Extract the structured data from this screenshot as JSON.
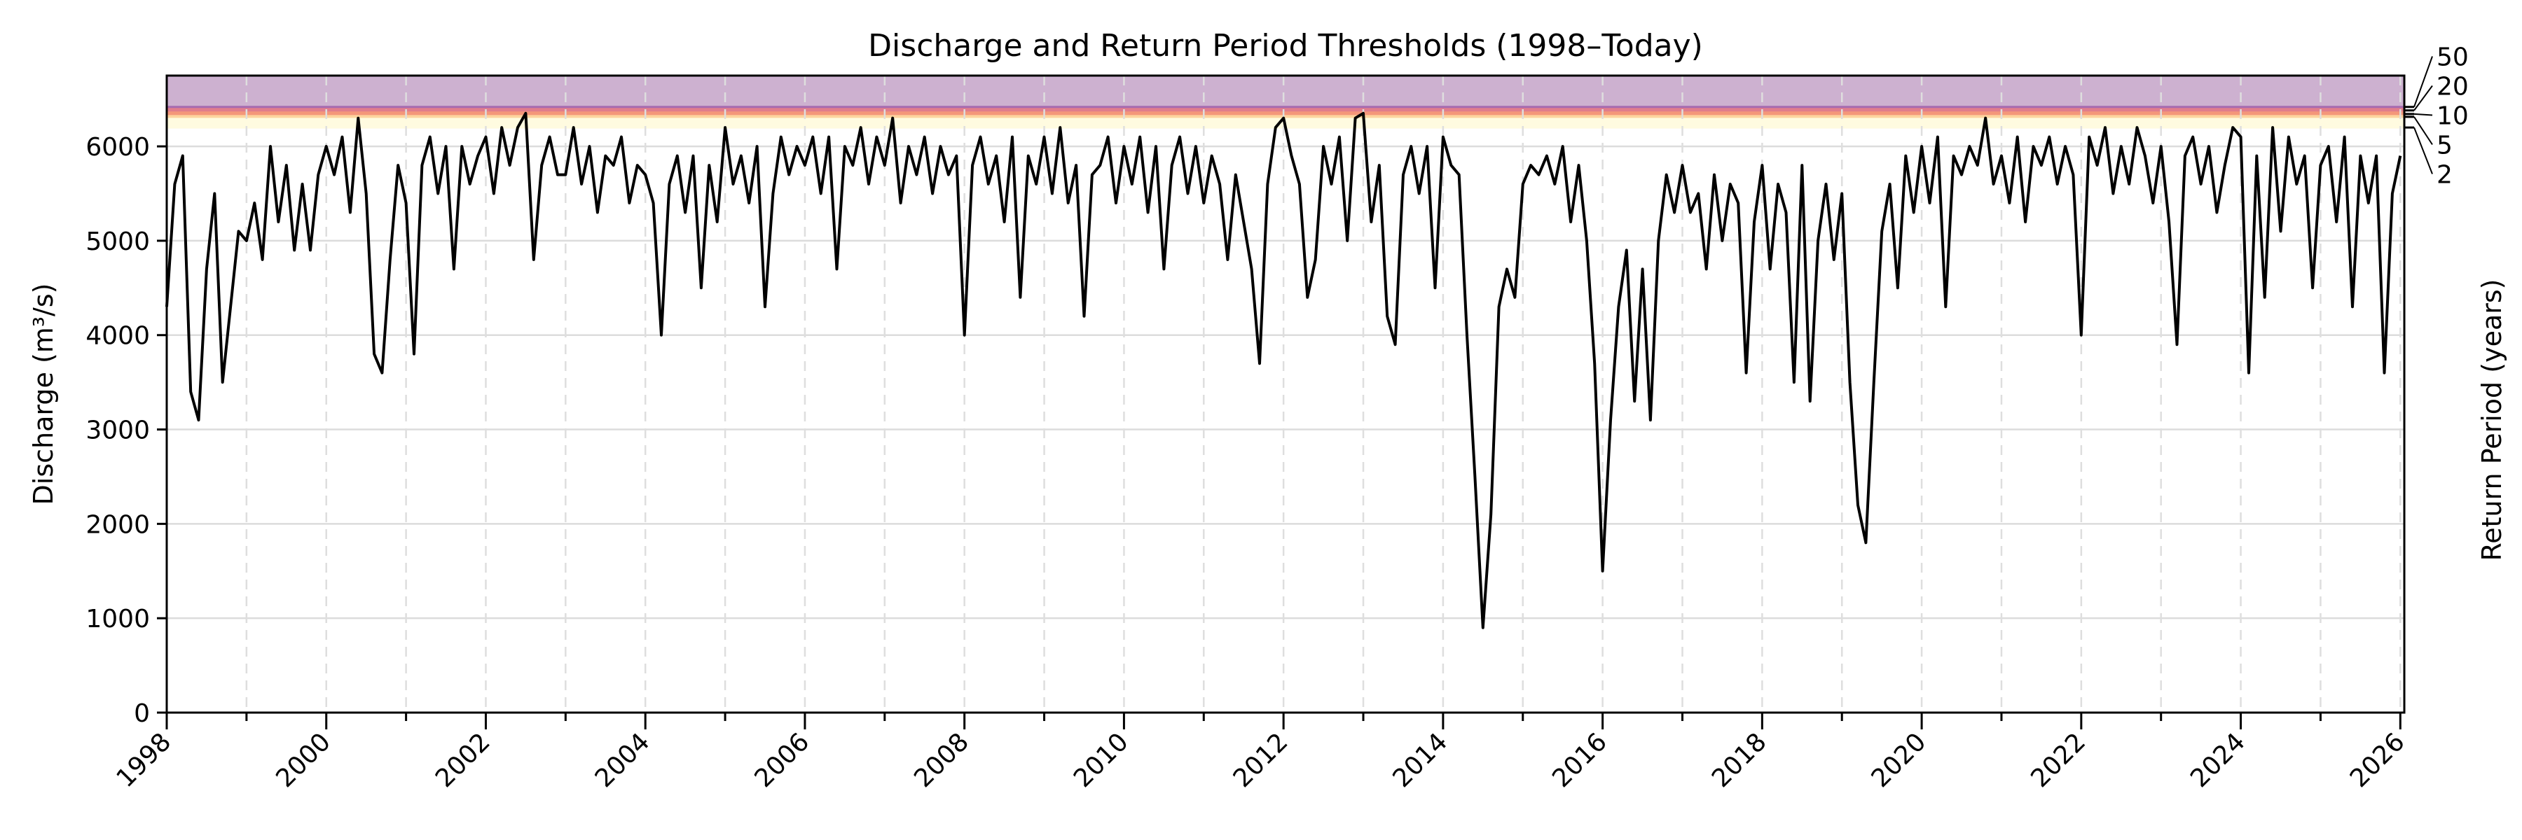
{
  "chart_data": {
    "type": "line",
    "title": "Discharge and Return Period Thresholds (1998–Today)",
    "xlabel": "",
    "ylabel": "Discharge (m³/s)",
    "y2label": "Return Period (years)",
    "xlim": [
      1998,
      2026.05
    ],
    "ylim": [
      0,
      6750
    ],
    "xticks": [
      "1998",
      "2000",
      "2002",
      "2004",
      "2006",
      "2008",
      "2010",
      "2012",
      "2014",
      "2016",
      "2018",
      "2020",
      "2022",
      "2024",
      "2026"
    ],
    "yticks": [
      "0",
      "1000",
      "2000",
      "3000",
      "4000",
      "5000",
      "6000"
    ],
    "grid": true,
    "line_color": "#000000",
    "return_periods": [
      {
        "label": "2",
        "value": 6200,
        "color": "#fffbe0"
      },
      {
        "label": "5",
        "value": 6313,
        "color": "#fdd49e"
      },
      {
        "label": "10",
        "value": 6343,
        "color": "#f4977a"
      },
      {
        "label": "20",
        "value": 6381,
        "color": "#e07d8c"
      },
      {
        "label": "50",
        "value": 6418,
        "color": "#a66bb0"
      }
    ],
    "above_max_color": "#cdb1d0",
    "values_by_year": {
      "1998": [
        4300,
        5600,
        5900,
        3400,
        3100,
        4700,
        5500,
        3500,
        4300,
        5100
      ],
      "1999": [
        5000,
        5400,
        4800,
        6000,
        5200,
        5800,
        4900,
        5600,
        4900,
        5700
      ],
      "2000": [
        6000,
        5700,
        6100,
        5300,
        6300,
        5500,
        3800,
        3600,
        4800,
        5800
      ],
      "2001": [
        5400,
        3800,
        5800,
        6100,
        5500,
        6000,
        4700,
        6000,
        5600,
        5900
      ],
      "2002": [
        6100,
        5500,
        6200,
        5800,
        6200,
        6350,
        4800,
        5800,
        6100,
        5700
      ],
      "2003": [
        5700,
        6200,
        5600,
        6000,
        5300,
        5900,
        5800,
        6100,
        5400,
        5800
      ],
      "2004": [
        5700,
        5400,
        4000,
        5600,
        5900,
        5300,
        5900,
        4500,
        5800,
        5200
      ],
      "2005": [
        6200,
        5600,
        5900,
        5400,
        6000,
        4300,
        5500,
        6100,
        5700,
        6000
      ],
      "2006": [
        5800,
        6100,
        5500,
        6100,
        4700,
        6000,
        5800,
        6200,
        5600,
        6100
      ],
      "2007": [
        5800,
        6300,
        5400,
        6000,
        5700,
        6100,
        5500,
        6000,
        5700,
        5900
      ],
      "2008": [
        4000,
        5800,
        6100,
        5600,
        5900,
        5200,
        6100,
        4400,
        5900,
        5600
      ],
      "2009": [
        6100,
        5500,
        6200,
        5400,
        5800,
        4200,
        5700,
        5800,
        6100,
        5400
      ],
      "2010": [
        6000,
        5600,
        6100,
        5300,
        6000,
        4700,
        5800,
        6100,
        5500,
        6000
      ],
      "2011": [
        5400,
        5900,
        5600,
        4800,
        5700,
        5200,
        4700,
        3700,
        5600,
        6200
      ],
      "2012": [
        6300,
        5900,
        5600,
        4400,
        4800,
        6000,
        5600,
        6100,
        5000,
        6300
      ],
      "2013": [
        6350,
        5200,
        5800,
        4200,
        3900,
        5700,
        6000,
        5500,
        6000,
        4500
      ],
      "2014": [
        6100,
        5800,
        5700,
        4000,
        2500,
        900,
        2100,
        4300,
        4700,
        4400
      ],
      "2015": [
        5600,
        5800,
        5700,
        5900,
        5600,
        6000,
        5200,
        5800,
        5000,
        3700
      ],
      "2016": [
        1500,
        3100,
        4300,
        4900,
        3300,
        4700,
        3100,
        5000,
        5700,
        5300
      ],
      "2017": [
        5800,
        5300,
        5500,
        4700,
        5700,
        5000,
        5600,
        5400,
        3600,
        5200
      ],
      "2018": [
        5800,
        4700,
        5600,
        5300,
        3500,
        5800,
        3300,
        5000,
        5600,
        4800
      ],
      "2019": [
        5500,
        3500,
        2200,
        1800,
        3500,
        5100,
        5600,
        4500,
        5900,
        5300
      ],
      "2020": [
        6000,
        5400,
        6100,
        4300,
        5900,
        5700,
        6000,
        5800,
        6300,
        5600
      ],
      "2021": [
        5900,
        5400,
        6100,
        5200,
        6000,
        5800,
        6100,
        5600,
        6000,
        5700
      ],
      "2022": [
        4000,
        6100,
        5800,
        6200,
        5500,
        6000,
        5600,
        6200,
        5900,
        5400
      ],
      "2023": [
        6000,
        5200,
        3900,
        5900,
        6100,
        5600,
        6000,
        5300,
        5800,
        6200
      ],
      "2024": [
        6100,
        3600,
        5900,
        4400,
        6200,
        5100,
        6100,
        5600,
        5900,
        4500
      ],
      "2025": [
        5800,
        6000,
        5200,
        6100,
        4300,
        5900,
        5400,
        5900,
        3600,
        5500
      ],
      "2026": [
        5900
      ]
    }
  }
}
